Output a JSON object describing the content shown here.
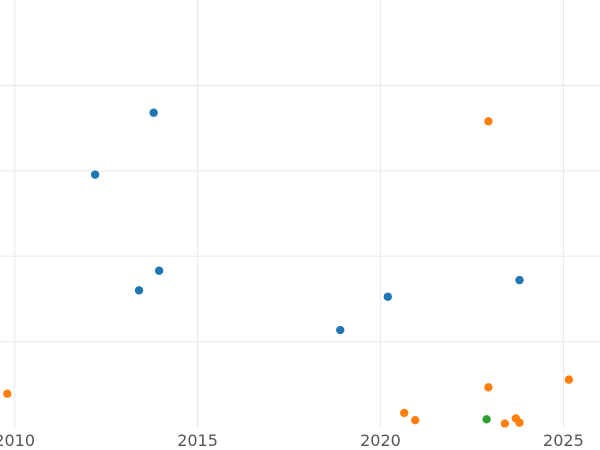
{
  "chart_data": {
    "type": "scatter",
    "title": "",
    "xlabel": "",
    "ylabel": "",
    "xlim": [
      2009.6,
      2026.0
    ],
    "ylim": [
      0,
      1
    ],
    "x_ticks": [
      "2010",
      "2015",
      "2020",
      "2025"
    ],
    "x_tick_values": [
      2010,
      2015,
      2020,
      2025
    ],
    "y_gridlines": [
      0.2,
      0.4,
      0.6,
      0.8
    ],
    "grid": true,
    "legend": "none",
    "series": [
      {
        "color": "#1f77b4",
        "points": [
          {
            "x": 2012.2,
            "y": 0.591
          },
          {
            "x": 2013.8,
            "y": 0.736
          },
          {
            "x": 2013.4,
            "y": 0.32
          },
          {
            "x": 2013.95,
            "y": 0.366
          },
          {
            "x": 2018.9,
            "y": 0.227
          },
          {
            "x": 2020.2,
            "y": 0.305
          },
          {
            "x": 2023.8,
            "y": 0.344
          }
        ]
      },
      {
        "color": "#ff7f0e",
        "points": [
          {
            "x": 2009.8,
            "y": 0.078
          },
          {
            "x": 2020.65,
            "y": 0.033
          },
          {
            "x": 2020.95,
            "y": 0.016
          },
          {
            "x": 2022.95,
            "y": 0.716
          },
          {
            "x": 2022.95,
            "y": 0.093
          },
          {
            "x": 2023.4,
            "y": 0.008
          },
          {
            "x": 2023.7,
            "y": 0.02
          },
          {
            "x": 2023.8,
            "y": 0.01
          },
          {
            "x": 2025.15,
            "y": 0.111
          }
        ]
      },
      {
        "color": "#2ca02c",
        "points": [
          {
            "x": 2022.9,
            "y": 0.018
          }
        ]
      }
    ]
  }
}
